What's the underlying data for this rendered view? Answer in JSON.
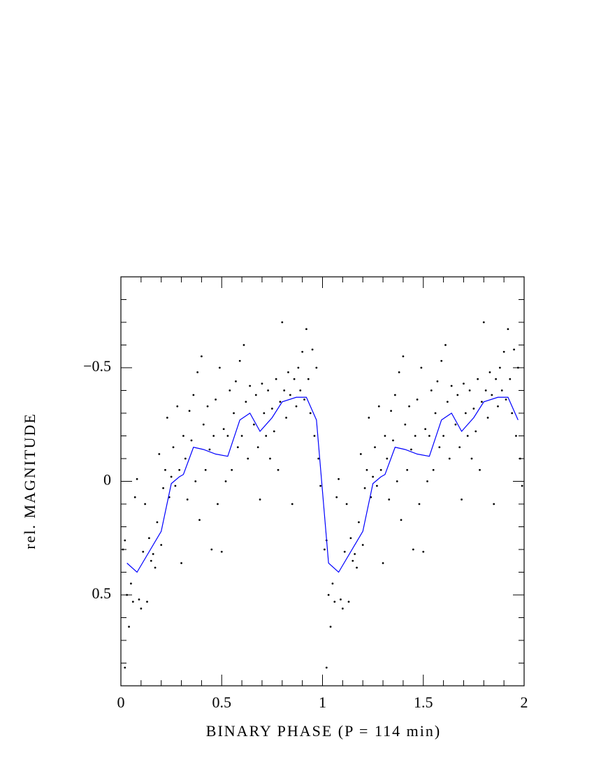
{
  "chart_data": {
    "type": "scatter",
    "xlabel": "BINARY PHASE (P = 114 min)",
    "ylabel": "rel. MAGNITUDE",
    "xlim": [
      0,
      2
    ],
    "ylim": [
      -0.9,
      0.9
    ],
    "y_inverted": true,
    "xticks": [
      0,
      0.5,
      1,
      1.5,
      2
    ],
    "yticks": [
      {
        "value": -0.5,
        "label": "−0.5"
      },
      0,
      0.5
    ],
    "xminor_ticks": [
      0.1,
      0.2,
      0.3,
      0.4,
      0.6,
      0.7,
      0.8,
      0.9,
      1.1,
      1.2,
      1.3,
      1.4,
      1.6,
      1.7,
      1.8,
      1.9
    ],
    "yminor_ticks": [
      -0.8,
      -0.7,
      -0.6,
      -0.4,
      -0.3,
      -0.2,
      -0.1,
      0.1,
      0.2,
      0.3,
      0.4,
      0.6,
      0.7,
      0.8
    ],
    "series": [
      {
        "type": "scatter",
        "color": "#000000",
        "x": [
          0.01,
          0.02,
          0.02,
          0.03,
          0.04,
          0.05,
          0.06,
          0.07,
          0.08,
          0.09,
          0.1,
          0.11,
          0.12,
          0.13,
          0.14,
          0.15,
          0.16,
          0.17,
          0.18,
          0.19,
          0.2,
          0.21,
          0.22,
          0.23,
          0.24,
          0.25,
          0.26,
          0.27,
          0.28,
          0.29,
          0.3,
          0.31,
          0.32,
          0.33,
          0.34,
          0.35,
          0.36,
          0.37,
          0.38,
          0.39,
          0.4,
          0.41,
          0.42,
          0.43,
          0.44,
          0.45,
          0.46,
          0.47,
          0.48,
          0.49,
          0.5,
          0.51,
          0.52,
          0.53,
          0.54,
          0.55,
          0.56,
          0.57,
          0.58,
          0.59,
          0.6,
          0.61,
          0.62,
          0.63,
          0.64,
          0.66,
          0.67,
          0.68,
          0.69,
          0.7,
          0.71,
          0.72,
          0.73,
          0.74,
          0.75,
          0.76,
          0.77,
          0.78,
          0.79,
          0.8,
          0.81,
          0.82,
          0.83,
          0.84,
          0.85,
          0.86,
          0.87,
          0.88,
          0.89,
          0.9,
          0.91,
          0.92,
          0.93,
          0.94,
          0.95,
          0.96,
          0.97,
          0.98,
          0.99,
          1.01,
          1.02,
          1.02,
          1.03,
          1.04,
          1.05,
          1.06,
          1.07,
          1.08,
          1.09,
          1.1,
          1.11,
          1.12,
          1.13,
          1.14,
          1.15,
          1.16,
          1.17,
          1.18,
          1.19,
          1.2,
          1.21,
          1.22,
          1.23,
          1.24,
          1.25,
          1.26,
          1.27,
          1.28,
          1.29,
          1.3,
          1.31,
          1.32,
          1.33,
          1.34,
          1.35,
          1.36,
          1.37,
          1.38,
          1.39,
          1.4,
          1.41,
          1.42,
          1.43,
          1.44,
          1.45,
          1.46,
          1.47,
          1.48,
          1.49,
          1.5,
          1.51,
          1.52,
          1.53,
          1.54,
          1.55,
          1.56,
          1.57,
          1.58,
          1.59,
          1.6,
          1.61,
          1.62,
          1.63,
          1.64,
          1.66,
          1.67,
          1.68,
          1.69,
          1.7,
          1.71,
          1.72,
          1.73,
          1.74,
          1.75,
          1.76,
          1.77,
          1.78,
          1.79,
          1.8,
          1.81,
          1.82,
          1.83,
          1.84,
          1.85,
          1.86,
          1.87,
          1.88,
          1.89,
          1.9,
          1.91,
          1.92,
          1.93,
          1.94,
          1.95,
          1.96,
          1.97,
          1.98,
          1.99
        ],
        "values": [
          0.3,
          0.26,
          0.82,
          0.5,
          0.64,
          0.45,
          0.53,
          0.07,
          -0.01,
          0.52,
          0.56,
          0.31,
          0.1,
          0.53,
          0.25,
          0.35,
          0.32,
          0.38,
          0.18,
          -0.12,
          0.28,
          0.03,
          -0.05,
          -0.28,
          0.07,
          -0.02,
          -0.15,
          0.02,
          -0.33,
          -0.05,
          0.36,
          -0.2,
          -0.1,
          0.08,
          -0.31,
          -0.18,
          -0.38,
          0.0,
          -0.48,
          0.17,
          -0.55,
          -0.25,
          -0.05,
          -0.33,
          -0.14,
          0.3,
          -0.2,
          -0.36,
          0.1,
          -0.5,
          0.31,
          -0.23,
          0.0,
          -0.2,
          -0.4,
          -0.05,
          -0.3,
          -0.44,
          -0.15,
          -0.53,
          -0.2,
          -0.6,
          -0.35,
          -0.1,
          -0.42,
          -0.25,
          -0.38,
          -0.15,
          0.08,
          -0.43,
          -0.3,
          -0.2,
          -0.4,
          -0.1,
          -0.32,
          -0.22,
          -0.45,
          -0.05,
          -0.35,
          -0.7,
          -0.4,
          -0.28,
          -0.48,
          -0.38,
          0.1,
          -0.45,
          -0.33,
          -0.5,
          -0.4,
          -0.57,
          -0.36,
          -0.67,
          -0.45,
          -0.3,
          -0.58,
          -0.2,
          -0.5,
          -0.1,
          0.02,
          0.3,
          0.26,
          0.82,
          0.5,
          0.64,
          0.45,
          0.53,
          0.07,
          -0.01,
          0.52,
          0.56,
          0.31,
          0.1,
          0.53,
          0.25,
          0.35,
          0.32,
          0.38,
          0.18,
          -0.12,
          0.28,
          0.03,
          -0.05,
          -0.28,
          0.07,
          -0.02,
          -0.15,
          0.02,
          -0.33,
          -0.05,
          0.36,
          -0.2,
          -0.1,
          0.08,
          -0.31,
          -0.18,
          -0.38,
          0.0,
          -0.48,
          0.17,
          -0.55,
          -0.25,
          -0.05,
          -0.33,
          -0.14,
          0.3,
          -0.2,
          -0.36,
          0.1,
          -0.5,
          0.31,
          -0.23,
          0.0,
          -0.2,
          -0.4,
          -0.05,
          -0.3,
          -0.44,
          -0.15,
          -0.53,
          -0.2,
          -0.6,
          -0.35,
          -0.1,
          -0.42,
          -0.25,
          -0.38,
          -0.15,
          0.08,
          -0.43,
          -0.3,
          -0.2,
          -0.4,
          -0.1,
          -0.32,
          -0.22,
          -0.45,
          -0.05,
          -0.35,
          -0.7,
          -0.4,
          -0.28,
          -0.48,
          -0.38,
          0.1,
          -0.45,
          -0.33,
          -0.5,
          -0.4,
          -0.57,
          -0.36,
          -0.67,
          -0.45,
          -0.3,
          -0.58,
          -0.2,
          -0.5,
          -0.1,
          0.02
        ]
      },
      {
        "type": "line",
        "color": "#0000ff",
        "x": [
          0.03,
          0.08,
          0.2,
          0.25,
          0.29,
          0.31,
          0.36,
          0.41,
          0.47,
          0.53,
          0.59,
          0.64,
          0.69,
          0.75,
          0.8,
          0.87,
          0.92,
          0.97,
          1.03,
          1.08,
          1.2,
          1.25,
          1.29,
          1.31,
          1.36,
          1.41,
          1.47,
          1.53,
          1.59,
          1.64,
          1.69,
          1.75,
          1.8,
          1.87,
          1.92,
          1.97
        ],
        "values": [
          0.36,
          0.4,
          0.22,
          0.01,
          -0.02,
          -0.03,
          -0.15,
          -0.14,
          -0.12,
          -0.11,
          -0.27,
          -0.3,
          -0.22,
          -0.28,
          -0.35,
          -0.37,
          -0.37,
          -0.27,
          0.36,
          0.4,
          0.22,
          0.01,
          -0.02,
          -0.03,
          -0.15,
          -0.14,
          -0.12,
          -0.11,
          -0.27,
          -0.3,
          -0.22,
          -0.28,
          -0.35,
          -0.37,
          -0.37,
          -0.27
        ]
      }
    ]
  }
}
